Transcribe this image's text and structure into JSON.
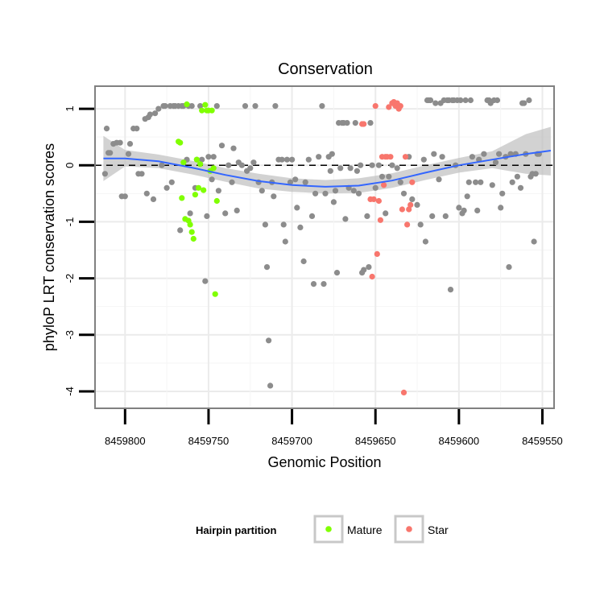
{
  "chart_data": {
    "type": "scatter",
    "title": "Conservation",
    "xlabel": "Genomic Position",
    "ylabel": "phyloP LRT conservation scores",
    "xlim": [
      8459818,
      8459543
    ],
    "ylim": [
      -4.3,
      1.4
    ],
    "x_reversed": true,
    "x_ticks": [
      8459800,
      8459750,
      8459700,
      8459650,
      8459600,
      8459550
    ],
    "x_tick_labels": [
      "8459800",
      "8459750",
      "8459700",
      "8459650",
      "8459600",
      "8459550"
    ],
    "y_ticks": [
      1,
      0,
      -1,
      -2,
      -3,
      -4
    ],
    "y_tick_labels": [
      "1",
      "0",
      "-1",
      "-2",
      "-3",
      "-4"
    ],
    "grid": true,
    "reference_line": {
      "y": 0,
      "style": "dashed"
    },
    "legend": {
      "title": "Hairpin partition",
      "placement": "bottom",
      "entries": [
        {
          "name": "Mature",
          "color": "#80ff00"
        },
        {
          "name": "Star",
          "color": "#f8766d"
        }
      ]
    },
    "colors": {
      "other": "#8c8c8c",
      "mature": "#80ff00",
      "star": "#f8766d",
      "smooth_line": "#3366ff",
      "smooth_band": "#bfbfbf",
      "panel_border": "#808080"
    },
    "smooth": {
      "x": [
        8459813,
        8459800,
        8459780,
        8459760,
        8459740,
        8459720,
        8459700,
        8459680,
        8459660,
        8459640,
        8459620,
        8459600,
        8459580,
        8459560,
        8459545
      ],
      "y": [
        0.12,
        0.12,
        0.07,
        -0.04,
        -0.17,
        -0.28,
        -0.35,
        -0.38,
        -0.36,
        -0.27,
        -0.13,
        0.0,
        0.1,
        0.2,
        0.26
      ],
      "lower": [
        -0.28,
        -0.02,
        -0.05,
        -0.16,
        -0.29,
        -0.41,
        -0.47,
        -0.5,
        -0.49,
        -0.4,
        -0.26,
        -0.13,
        -0.05,
        -0.15,
        -0.18
      ],
      "upper": [
        0.52,
        0.27,
        0.19,
        0.08,
        -0.05,
        -0.15,
        -0.23,
        -0.26,
        -0.23,
        -0.14,
        0.0,
        0.13,
        0.25,
        0.55,
        0.68
      ]
    },
    "series": [
      {
        "name": "",
        "group": "other",
        "points": [
          [
            8459812,
            -0.15
          ],
          [
            8459811,
            0.65
          ],
          [
            8459810,
            0.22
          ],
          [
            8459809,
            0.22
          ],
          [
            8459807,
            0.38
          ],
          [
            8459805,
            0.4
          ],
          [
            8459803,
            0.4
          ],
          [
            8459802,
            -0.55
          ],
          [
            8459800,
            -0.55
          ],
          [
            8459798,
            0.2
          ],
          [
            8459797,
            0.38
          ],
          [
            8459795,
            0.65
          ],
          [
            8459793,
            0.65
          ],
          [
            8459792,
            -0.15
          ],
          [
            8459790,
            -0.15
          ],
          [
            8459788,
            0.82
          ],
          [
            8459787,
            -0.5
          ],
          [
            8459786,
            0.85
          ],
          [
            8459785,
            0.9
          ],
          [
            8459783,
            -0.6
          ],
          [
            8459782,
            0.92
          ],
          [
            8459780,
            1.0
          ],
          [
            8459778,
            0.0
          ],
          [
            8459777,
            1.05
          ],
          [
            8459776,
            1.05
          ],
          [
            8459775,
            -0.4
          ],
          [
            8459773,
            1.05
          ],
          [
            8459772,
            -0.3
          ],
          [
            8459771,
            1.05
          ],
          [
            8459770,
            1.05
          ],
          [
            8459768,
            1.05
          ],
          [
            8459767,
            -1.15
          ],
          [
            8459766,
            1.05
          ],
          [
            8459765,
            1.05
          ],
          [
            8459763,
            0.1
          ],
          [
            8459762,
            1.05
          ],
          [
            8459761,
            -0.85
          ],
          [
            8459760,
            1.05
          ],
          [
            8459758,
            -0.4
          ],
          [
            8459757,
            0.1
          ],
          [
            8459755,
            1.05
          ],
          [
            8459754,
            0.1
          ],
          [
            8459752,
            -2.05
          ],
          [
            8459751,
            -0.9
          ],
          [
            8459750,
            0.15
          ],
          [
            8459748,
            -0.25
          ],
          [
            8459747,
            0.15
          ],
          [
            8459745,
            1.05
          ],
          [
            8459744,
            -0.45
          ],
          [
            8459742,
            0.35
          ],
          [
            8459740,
            -0.85
          ],
          [
            8459738,
            0.0
          ],
          [
            8459736,
            -0.3
          ],
          [
            8459735,
            0.3
          ],
          [
            8459733,
            -0.8
          ],
          [
            8459732,
            0.05
          ],
          [
            8459730,
            0.0
          ],
          [
            8459728,
            1.05
          ],
          [
            8459727,
            -0.1
          ],
          [
            8459725,
            -0.05
          ],
          [
            8459723,
            0.05
          ],
          [
            8459722,
            1.05
          ],
          [
            8459720,
            -0.3
          ],
          [
            8459718,
            -0.45
          ],
          [
            8459716,
            -1.05
          ],
          [
            8459715,
            -1.8
          ],
          [
            8459714,
            -3.1
          ],
          [
            8459713,
            -3.9
          ],
          [
            8459712,
            -0.3
          ],
          [
            8459711,
            -0.55
          ],
          [
            8459710,
            1.05
          ],
          [
            8459708,
            0.1
          ],
          [
            8459706,
            0.1
          ],
          [
            8459705,
            -1.05
          ],
          [
            8459704,
            -1.35
          ],
          [
            8459703,
            0.1
          ],
          [
            8459701,
            -0.3
          ],
          [
            8459700,
            0.1
          ],
          [
            8459698,
            -0.25
          ],
          [
            8459697,
            -0.75
          ],
          [
            8459695,
            -1.1
          ],
          [
            8459693,
            -1.7
          ],
          [
            8459692,
            -0.3
          ],
          [
            8459690,
            0.1
          ],
          [
            8459688,
            -0.9
          ],
          [
            8459687,
            -2.1
          ],
          [
            8459686,
            -0.5
          ],
          [
            8459684,
            0.15
          ],
          [
            8459682,
            1.05
          ],
          [
            8459681,
            -2.1
          ],
          [
            8459680,
            -0.5
          ],
          [
            8459678,
            0.15
          ],
          [
            8459677,
            -0.1
          ],
          [
            8459676,
            0.2
          ],
          [
            8459675,
            -0.65
          ],
          [
            8459674,
            -0.45
          ],
          [
            8459673,
            -1.9
          ],
          [
            8459672,
            0.75
          ],
          [
            8459671,
            -0.05
          ],
          [
            8459670,
            0.75
          ],
          [
            8459669,
            0.75
          ],
          [
            8459668,
            -0.95
          ],
          [
            8459667,
            0.75
          ],
          [
            8459666,
            -0.4
          ],
          [
            8459665,
            -0.05
          ],
          [
            8459663,
            -0.45
          ],
          [
            8459662,
            0.75
          ],
          [
            8459661,
            -0.1
          ],
          [
            8459660,
            -0.5
          ],
          [
            8459659,
            0.0
          ],
          [
            8459658,
            -1.9
          ],
          [
            8459657,
            -1.85
          ],
          [
            8459655,
            -0.9
          ],
          [
            8459654,
            -1.8
          ],
          [
            8459653,
            0.75
          ],
          [
            8459652,
            0.0
          ],
          [
            8459650,
            -0.4
          ],
          [
            8459648,
            0.0
          ],
          [
            8459646,
            -0.2
          ],
          [
            8459644,
            -0.85
          ],
          [
            8459642,
            -0.2
          ],
          [
            8459640,
            0.0
          ],
          [
            8459637,
            -0.05
          ],
          [
            8459635,
            -0.3
          ],
          [
            8459633,
            -0.5
          ],
          [
            8459630,
            0.15
          ],
          [
            8459628,
            -0.6
          ],
          [
            8459625,
            -0.7
          ],
          [
            8459623,
            -1.05
          ],
          [
            8459621,
            0.1
          ],
          [
            8459620,
            -1.35
          ],
          [
            8459619,
            1.15
          ],
          [
            8459618,
            1.15
          ],
          [
            8459617,
            1.15
          ],
          [
            8459616,
            -0.9
          ],
          [
            8459615,
            0.2
          ],
          [
            8459614,
            1.1
          ],
          [
            8459612,
            -0.25
          ],
          [
            8459611,
            1.1
          ],
          [
            8459610,
            0.15
          ],
          [
            8459609,
            1.15
          ],
          [
            8459608,
            -0.9
          ],
          [
            8459607,
            1.15
          ],
          [
            8459606,
            1.15
          ],
          [
            8459605,
            -2.2
          ],
          [
            8459604,
            1.15
          ],
          [
            8459603,
            1.15
          ],
          [
            8459602,
            0.0
          ],
          [
            8459601,
            1.15
          ],
          [
            8459600,
            -0.75
          ],
          [
            8459599,
            1.15
          ],
          [
            8459598,
            -0.85
          ],
          [
            8459597,
            -0.8
          ],
          [
            8459596,
            1.15
          ],
          [
            8459595,
            -0.55
          ],
          [
            8459594,
            -0.3
          ],
          [
            8459593,
            1.15
          ],
          [
            8459592,
            0.15
          ],
          [
            8459590,
            -0.3
          ],
          [
            8459589,
            -0.8
          ],
          [
            8459588,
            0.1
          ],
          [
            8459587,
            -0.3
          ],
          [
            8459585,
            0.2
          ],
          [
            8459583,
            1.15
          ],
          [
            8459582,
            1.15
          ],
          [
            8459581,
            1.1
          ],
          [
            8459580,
            -0.35
          ],
          [
            8459579,
            1.15
          ],
          [
            8459578,
            0.05
          ],
          [
            8459577,
            1.15
          ],
          [
            8459576,
            0.2
          ],
          [
            8459575,
            -0.75
          ],
          [
            8459574,
            -0.5
          ],
          [
            8459572,
            0.15
          ],
          [
            8459570,
            -1.8
          ],
          [
            8459569,
            0.2
          ],
          [
            8459568,
            -0.3
          ],
          [
            8459566,
            0.2
          ],
          [
            8459565,
            -0.2
          ],
          [
            8459563,
            -0.4
          ],
          [
            8459562,
            1.1
          ],
          [
            8459561,
            1.1
          ],
          [
            8459560,
            0.2
          ],
          [
            8459558,
            1.15
          ],
          [
            8459557,
            -0.2
          ],
          [
            8459556,
            -0.15
          ],
          [
            8459555,
            -1.35
          ],
          [
            8459554,
            -0.15
          ],
          [
            8459553,
            0.2
          ],
          [
            8459552,
            0.2
          ]
        ]
      },
      {
        "name": "Mature",
        "group": "mature",
        "points": [
          [
            8459768,
            0.42
          ],
          [
            8459767,
            0.4
          ],
          [
            8459766,
            -0.58
          ],
          [
            8459765,
            0.05
          ],
          [
            8459764,
            -0.95
          ],
          [
            8459763,
            1.08
          ],
          [
            8459762,
            -0.98
          ],
          [
            8459761,
            -1.05
          ],
          [
            8459760,
            -1.18
          ],
          [
            8459759,
            -1.3
          ],
          [
            8459758,
            -0.52
          ],
          [
            8459757,
            0.1
          ],
          [
            8459756,
            -0.4
          ],
          [
            8459755,
            0.02
          ],
          [
            8459754,
            0.97
          ],
          [
            8459753,
            -0.44
          ],
          [
            8459752,
            1.07
          ],
          [
            8459751,
            0.97
          ],
          [
            8459750,
            0.97
          ],
          [
            8459749,
            -0.1
          ],
          [
            8459748,
            0.97
          ],
          [
            8459747,
            -0.05
          ],
          [
            8459746,
            -2.28
          ],
          [
            8459745,
            -0.63
          ]
        ]
      },
      {
        "name": "Star",
        "group": "star",
        "points": [
          [
            8459658,
            0.73
          ],
          [
            8459657,
            0.73
          ],
          [
            8459653,
            -0.6
          ],
          [
            8459652,
            -1.97
          ],
          [
            8459651,
            -0.6
          ],
          [
            8459650,
            1.05
          ],
          [
            8459649,
            -1.57
          ],
          [
            8459648,
            -0.63
          ],
          [
            8459647,
            -0.97
          ],
          [
            8459646,
            0.15
          ],
          [
            8459645,
            -0.35
          ],
          [
            8459644,
            0.15
          ],
          [
            8459643,
            0.15
          ],
          [
            8459642,
            1.03
          ],
          [
            8459641,
            0.15
          ],
          [
            8459640,
            1.1
          ],
          [
            8459639,
            1.12
          ],
          [
            8459638,
            1.05
          ],
          [
            8459637,
            1.1
          ],
          [
            8459636,
            1.0
          ],
          [
            8459635,
            1.05
          ],
          [
            8459634,
            -0.78
          ],
          [
            8459633,
            -4.02
          ],
          [
            8459632,
            0.15
          ],
          [
            8459631,
            -1.05
          ],
          [
            8459630,
            -0.78
          ],
          [
            8459629,
            -0.7
          ],
          [
            8459628,
            -0.3
          ]
        ]
      }
    ]
  }
}
